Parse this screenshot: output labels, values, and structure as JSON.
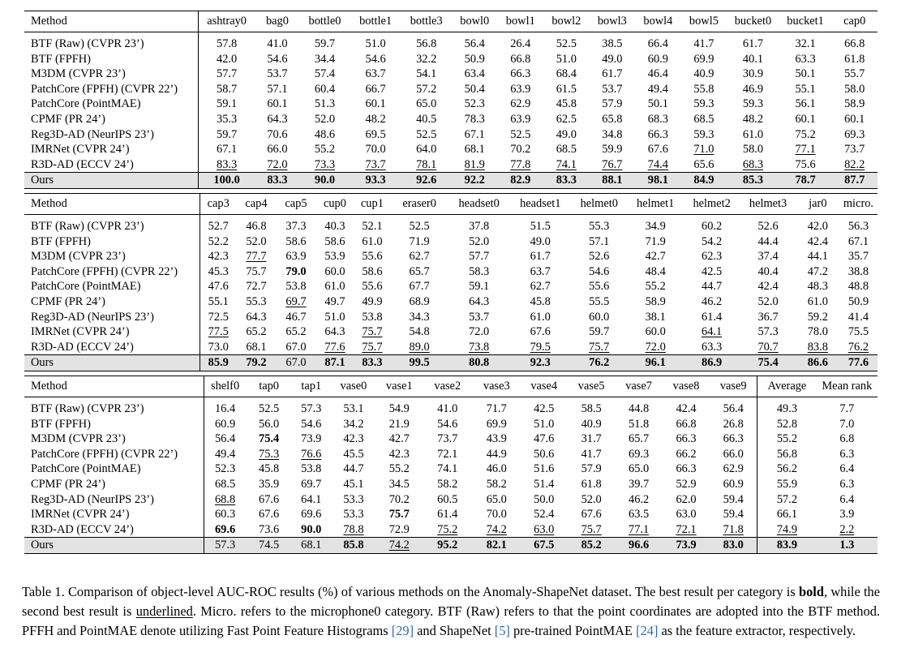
{
  "method_header": "Method",
  "tables": [
    {
      "columns": [
        "ashtray0",
        "bag0",
        "bottle0",
        "bottle1",
        "bottle3",
        "bowl0",
        "bowl1",
        "bowl2",
        "bowl3",
        "bowl4",
        "bowl5",
        "bucket0",
        "bucket1",
        "cap0"
      ],
      "rows": [
        {
          "method": "BTF (Raw) (CVPR 23’)",
          "values": [
            "57.8",
            "41.0",
            "59.7",
            "51.0",
            "56.8",
            "56.4",
            "26.4",
            "52.5",
            "38.5",
            "66.4",
            "41.7",
            "61.7",
            "32.1",
            "66.8"
          ]
        },
        {
          "method": "BTF (FPFH)",
          "values": [
            "42.0",
            "54.6",
            "34.4",
            "54.6",
            "32.2",
            "50.9",
            "66.8",
            "51.0",
            "49.0",
            "60.9",
            "69.9",
            "40.1",
            "63.3",
            "61.8"
          ]
        },
        {
          "method": "M3DM (CVPR 23’)",
          "values": [
            "57.7",
            "53.7",
            "57.4",
            "63.7",
            "54.1",
            "63.4",
            "66.3",
            "68.4",
            "61.7",
            "46.4",
            "40.9",
            "30.9",
            "50.1",
            "55.7"
          ]
        },
        {
          "method": "PatchCore (FPFH) (CVPR 22’)",
          "values": [
            "58.7",
            "57.1",
            "60.4",
            "66.7",
            "57.2",
            "50.4",
            "63.9",
            "61.5",
            "53.7",
            "49.4",
            "55.8",
            "46.9",
            "55.1",
            "58.0"
          ]
        },
        {
          "method": "PatchCore (PointMAE)",
          "values": [
            "59.1",
            "60.1",
            "51.3",
            "60.1",
            "65.0",
            "52.3",
            "62.9",
            "45.8",
            "57.9",
            "50.1",
            "59.3",
            "59.3",
            "56.1",
            "58.9"
          ]
        },
        {
          "method": "CPMF (PR 24’)",
          "values": [
            "35.3",
            "64.3",
            "52.0",
            "48.2",
            "40.5",
            "78.3",
            "63.9",
            "62.5",
            "65.8",
            "68.3",
            "68.5",
            "48.2",
            "60.1",
            "60.1"
          ]
        },
        {
          "method": "Reg3D-AD (NeurIPS 23’)",
          "values": [
            "59.7",
            "70.6",
            "48.6",
            "69.5",
            "52.5",
            "67.1",
            "52.5",
            "49.0",
            "34.8",
            "66.3",
            "59.3",
            "61.0",
            "75.2",
            "69.3"
          ]
        },
        {
          "method": "IMRNet (CVPR 24’)",
          "values": [
            "67.1",
            "66.0",
            "55.2",
            "70.0",
            "64.0",
            "68.1",
            "70.2",
            "68.5",
            "59.9",
            "67.6",
            "71.0",
            "58.0",
            "77.1",
            "73.7"
          ]
        },
        {
          "method": "R3D-AD (ECCV 24’)",
          "values": [
            "83.3",
            "72.0",
            "73.3",
            "73.7",
            "78.1",
            "81.9",
            "77.8",
            "74.1",
            "76.7",
            "74.4",
            "65.6",
            "68.3",
            "75.6",
            "82.2"
          ]
        },
        {
          "method": "Ours",
          "values": [
            "100.0",
            "83.3",
            "90.0",
            "93.3",
            "92.6",
            "92.2",
            "82.9",
            "83.3",
            "88.1",
            "98.1",
            "84.9",
            "85.3",
            "78.7",
            "87.7"
          ]
        }
      ],
      "bold": [
        [
          9,
          0
        ],
        [
          9,
          1
        ],
        [
          9,
          2
        ],
        [
          9,
          3
        ],
        [
          9,
          4
        ],
        [
          9,
          5
        ],
        [
          9,
          6
        ],
        [
          9,
          7
        ],
        [
          9,
          8
        ],
        [
          9,
          9
        ],
        [
          9,
          10
        ],
        [
          9,
          11
        ],
        [
          9,
          12
        ],
        [
          9,
          13
        ]
      ],
      "underline": [
        [
          8,
          0
        ],
        [
          8,
          1
        ],
        [
          8,
          2
        ],
        [
          8,
          3
        ],
        [
          8,
          4
        ],
        [
          8,
          5
        ],
        [
          8,
          6
        ],
        [
          8,
          7
        ],
        [
          8,
          8
        ],
        [
          8,
          9
        ],
        [
          7,
          10
        ],
        [
          8,
          11
        ],
        [
          7,
          12
        ],
        [
          8,
          13
        ]
      ]
    },
    {
      "columns": [
        "cap3",
        "cap4",
        "cap5",
        "cup0",
        "cup1",
        "eraser0",
        "headset0",
        "headset1",
        "helmet0",
        "helmet1",
        "helmet2",
        "helmet3",
        "jar0",
        "micro."
      ],
      "rows": [
        {
          "method": "BTF (Raw) (CVPR 23’)",
          "values": [
            "52.7",
            "46.8",
            "37.3",
            "40.3",
            "52.1",
            "52.5",
            "37.8",
            "51.5",
            "55.3",
            "34.9",
            "60.2",
            "52.6",
            "42.0",
            "56.3"
          ]
        },
        {
          "method": "BTF (FPFH)",
          "values": [
            "52.2",
            "52.0",
            "58.6",
            "58.6",
            "61.0",
            "71.9",
            "52.0",
            "49.0",
            "57.1",
            "71.9",
            "54.2",
            "44.4",
            "42.4",
            "67.1"
          ]
        },
        {
          "method": "M3DM (CVPR 23’)",
          "values": [
            "42.3",
            "77.7",
            "63.9",
            "53.9",
            "55.6",
            "62.7",
            "57.7",
            "61.7",
            "52.6",
            "42.7",
            "62.3",
            "37.4",
            "44.1",
            "35.7"
          ]
        },
        {
          "method": "PatchCore (FPFH) (CVPR 22’)",
          "values": [
            "45.3",
            "75.7",
            "79.0",
            "60.0",
            "58.6",
            "65.7",
            "58.3",
            "63.7",
            "54.6",
            "48.4",
            "42.5",
            "40.4",
            "47.2",
            "38.8"
          ]
        },
        {
          "method": "PatchCore (PointMAE)",
          "values": [
            "47.6",
            "72.7",
            "53.8",
            "61.0",
            "55.6",
            "67.7",
            "59.1",
            "62.7",
            "55.6",
            "55.2",
            "44.7",
            "42.4",
            "48.3",
            "48.8"
          ]
        },
        {
          "method": "CPMF (PR 24’)",
          "values": [
            "55.1",
            "55.3",
            "69.7",
            "49.7",
            "49.9",
            "68.9",
            "64.3",
            "45.8",
            "55.5",
            "58.9",
            "46.2",
            "52.0",
            "61.0",
            "50.9"
          ]
        },
        {
          "method": "Reg3D-AD (NeurIPS 23’)",
          "values": [
            "72.5",
            "64.3",
            "46.7",
            "51.0",
            "53.8",
            "34.3",
            "53.7",
            "61.0",
            "60.0",
            "38.1",
            "61.4",
            "36.7",
            "59.2",
            "41.4"
          ]
        },
        {
          "method": "IMRNet (CVPR 24’)",
          "values": [
            "77.5",
            "65.2",
            "65.2",
            "64.3",
            "75.7",
            "54.8",
            "72.0",
            "67.6",
            "59.7",
            "60.0",
            "64.1",
            "57.3",
            "78.0",
            "75.5"
          ]
        },
        {
          "method": "R3D-AD (ECCV 24’)",
          "values": [
            "73.0",
            "68.1",
            "67.0",
            "77.6",
            "75.7",
            "89.0",
            "73.8",
            "79.5",
            "75.7",
            "72.0",
            "63.3",
            "70.7",
            "83.8",
            "76.2"
          ]
        },
        {
          "method": "Ours",
          "values": [
            "85.9",
            "79.2",
            "67.0",
            "87.1",
            "83.3",
            "99.5",
            "80.8",
            "92.3",
            "76.2",
            "96.1",
            "86.9",
            "75.4",
            "86.6",
            "77.6"
          ]
        }
      ],
      "bold": [
        [
          9,
          0
        ],
        [
          9,
          1
        ],
        [
          3,
          2
        ],
        [
          9,
          3
        ],
        [
          9,
          4
        ],
        [
          9,
          5
        ],
        [
          9,
          6
        ],
        [
          9,
          7
        ],
        [
          9,
          8
        ],
        [
          9,
          9
        ],
        [
          9,
          10
        ],
        [
          9,
          11
        ],
        [
          9,
          12
        ],
        [
          9,
          13
        ]
      ],
      "underline": [
        [
          7,
          0
        ],
        [
          2,
          1
        ],
        [
          5,
          2
        ],
        [
          8,
          3
        ],
        [
          7,
          4
        ],
        [
          8,
          4
        ],
        [
          8,
          5
        ],
        [
          8,
          6
        ],
        [
          8,
          7
        ],
        [
          8,
          8
        ],
        [
          8,
          9
        ],
        [
          7,
          10
        ],
        [
          8,
          11
        ],
        [
          8,
          12
        ],
        [
          8,
          13
        ]
      ]
    },
    {
      "columns": [
        "shelf0",
        "tap0",
        "tap1",
        "vase0",
        "vase1",
        "vase2",
        "vase3",
        "vase4",
        "vase5",
        "vase7",
        "vase8",
        "vase9",
        "Average",
        "Mean rank"
      ],
      "rows": [
        {
          "method": "BTF (Raw) (CVPR 23’)",
          "values": [
            "16.4",
            "52.5",
            "57.3",
            "53.1",
            "54.9",
            "41.0",
            "71.7",
            "42.5",
            "58.5",
            "44.8",
            "42.4",
            "56.4",
            "49.3",
            "7.7"
          ]
        },
        {
          "method": "BTF (FPFH)",
          "values": [
            "60.9",
            "56.0",
            "54.6",
            "34.2",
            "21.9",
            "54.6",
            "69.9",
            "51.0",
            "40.9",
            "51.8",
            "66.8",
            "26.8",
            "52.8",
            "7.0"
          ]
        },
        {
          "method": "M3DM (CVPR 23’)",
          "values": [
            "56.4",
            "75.4",
            "73.9",
            "42.3",
            "42.7",
            "73.7",
            "43.9",
            "47.6",
            "31.7",
            "65.7",
            "66.3",
            "66.3",
            "55.2",
            "6.8"
          ]
        },
        {
          "method": "PatchCore (FPFH) (CVPR 22’)",
          "values": [
            "49.4",
            "75.3",
            "76.6",
            "45.5",
            "42.3",
            "72.1",
            "44.9",
            "50.6",
            "41.7",
            "69.3",
            "66.2",
            "66.0",
            "56.8",
            "6.3"
          ]
        },
        {
          "method": "PatchCore (PointMAE)",
          "values": [
            "52.3",
            "45.8",
            "53.8",
            "44.7",
            "55.2",
            "74.1",
            "46.0",
            "51.6",
            "57.9",
            "65.0",
            "66.3",
            "62.9",
            "56.2",
            "6.4"
          ]
        },
        {
          "method": "CPMF (PR 24’)",
          "values": [
            "68.5",
            "35.9",
            "69.7",
            "45.1",
            "34.5",
            "58.2",
            "58.2",
            "51.4",
            "61.8",
            "39.7",
            "52.9",
            "60.9",
            "55.9",
            "6.3"
          ]
        },
        {
          "method": "Reg3D-AD (NeurIPS 23’)",
          "values": [
            "68.8",
            "67.6",
            "64.1",
            "53.3",
            "70.2",
            "60.5",
            "65.0",
            "50.0",
            "52.0",
            "46.2",
            "62.0",
            "59.4",
            "57.2",
            "6.4"
          ]
        },
        {
          "method": "IMRNet (CVPR 24’)",
          "values": [
            "60.3",
            "67.6",
            "69.6",
            "53.3",
            "75.7",
            "61.4",
            "70.0",
            "52.4",
            "67.6",
            "63.5",
            "63.0",
            "59.4",
            "66.1",
            "3.9"
          ]
        },
        {
          "method": "R3D-AD (ECCV 24’)",
          "values": [
            "69.6",
            "73.6",
            "90.0",
            "78.8",
            "72.9",
            "75.2",
            "74.2",
            "63.0",
            "75.7",
            "77.1",
            "72.1",
            "71.8",
            "74.9",
            "2.2"
          ]
        },
        {
          "method": "Ours",
          "values": [
            "57.3",
            "74.5",
            "68.1",
            "85.8",
            "74.2",
            "95.2",
            "82.1",
            "67.5",
            "85.2",
            "96.6",
            "73.9",
            "83.0",
            "83.9",
            "1.3"
          ]
        }
      ],
      "bold": [
        [
          8,
          0
        ],
        [
          2,
          1
        ],
        [
          8,
          2
        ],
        [
          9,
          3
        ],
        [
          7,
          4
        ],
        [
          9,
          5
        ],
        [
          9,
          6
        ],
        [
          9,
          7
        ],
        [
          9,
          8
        ],
        [
          9,
          9
        ],
        [
          9,
          10
        ],
        [
          9,
          11
        ],
        [
          9,
          12
        ],
        [
          9,
          13
        ]
      ],
      "underline": [
        [
          6,
          0
        ],
        [
          3,
          1
        ],
        [
          3,
          2
        ],
        [
          8,
          3
        ],
        [
          9,
          4
        ],
        [
          8,
          5
        ],
        [
          8,
          6
        ],
        [
          8,
          7
        ],
        [
          8,
          8
        ],
        [
          8,
          9
        ],
        [
          8,
          10
        ],
        [
          8,
          11
        ],
        [
          8,
          12
        ],
        [
          8,
          13
        ]
      ]
    }
  ],
  "caption": {
    "t1": "Table 1. Comparison of object-level AUC-ROC results (%) of various methods on the Anomaly-ShapeNet dataset. The best result per category is ",
    "bold_word": "bold",
    "t2": ", while the second best result is ",
    "underline_word": "underlined",
    "t3": ". Micro. refers to the microphone0 category. BTF (Raw) refers to that the point coordinates are adopted into the BTF method. PFFH and PointMAE denote utilizing Fast Point Feature Histograms ",
    "ref1": "[29]",
    "t4": " and ShapeNet ",
    "ref2": "[5]",
    "t5": " pre-trained PointMAE ",
    "ref3": "[24]",
    "t6": " as the feature extractor, respectively."
  }
}
